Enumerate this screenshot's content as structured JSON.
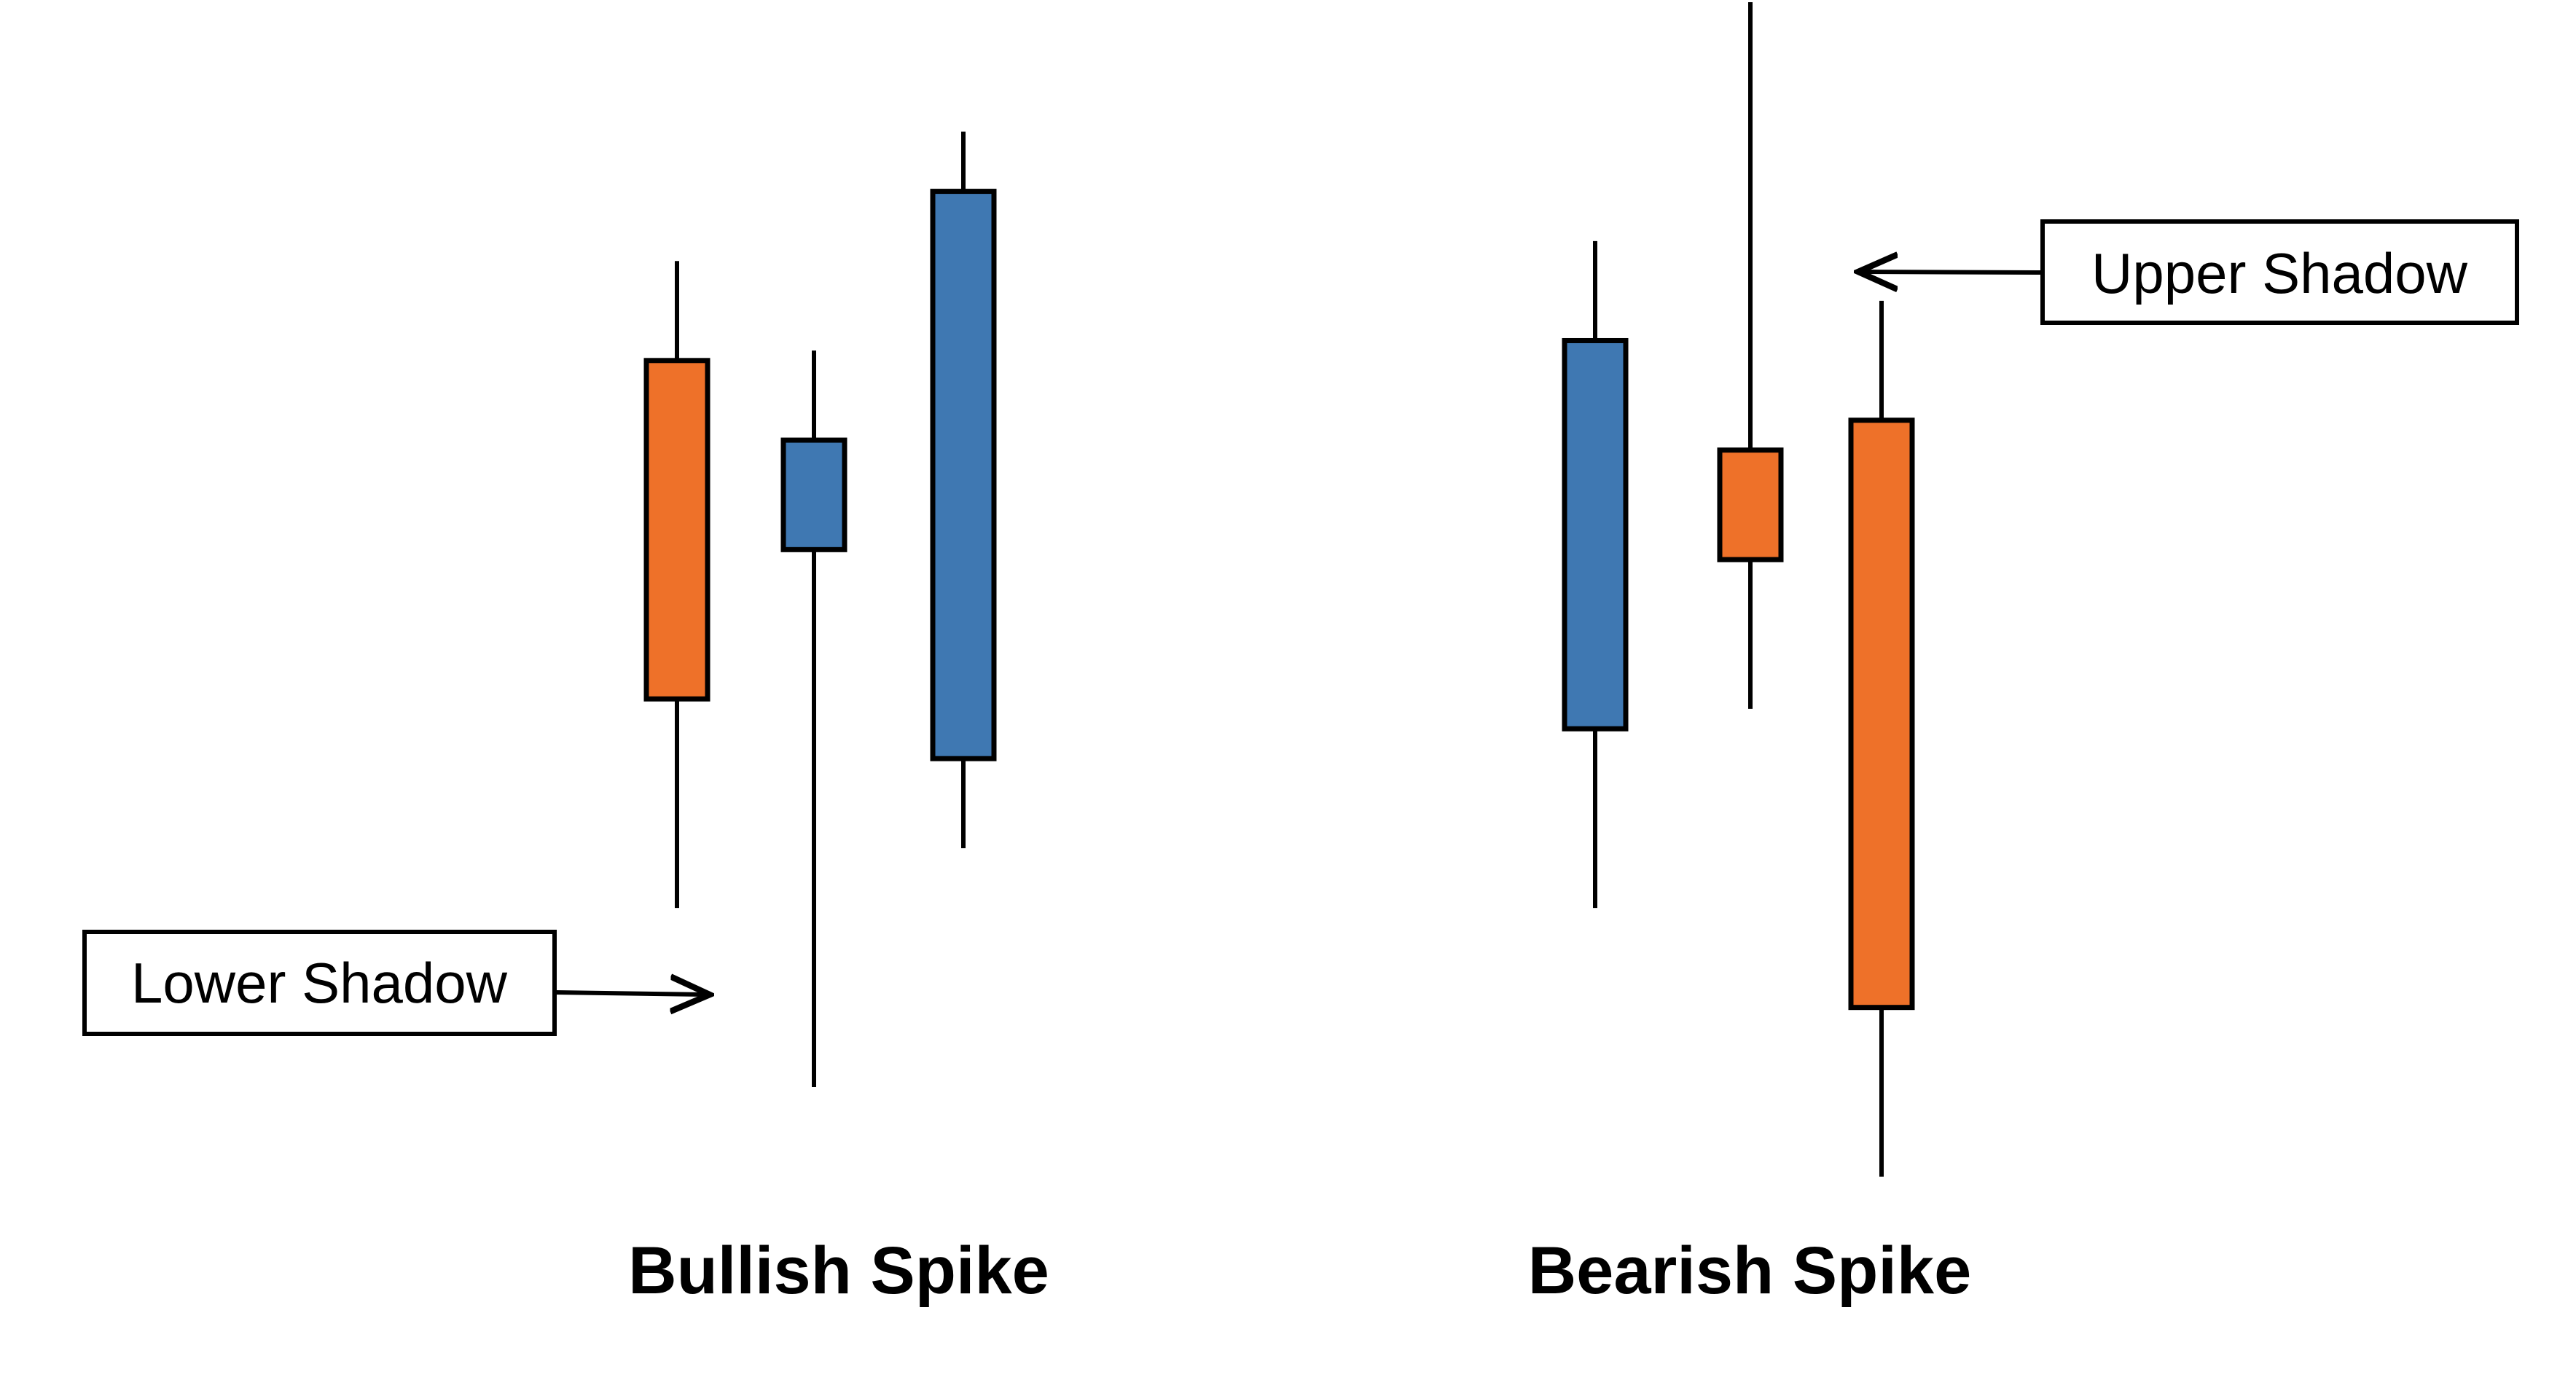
{
  "colors": {
    "bullish": "#3f78b2",
    "bearish": "#ee7129",
    "outline": "#000000",
    "background": "#ffffff"
  },
  "captions": {
    "bullish": "Bullish Spike",
    "bearish": "Bearish Spike"
  },
  "callouts": {
    "lower_shadow": "Lower Shadow",
    "upper_shadow": "Upper Shadow"
  },
  "groups": [
    {
      "name": "bullish-spike",
      "candles": [
        {
          "direction": "bearish",
          "high": 8.0,
          "open": 7.0,
          "close": 3.6,
          "low": 1.5
        },
        {
          "direction": "bullish",
          "high": 7.1,
          "open": 5.1,
          "close": 6.2,
          "low": -0.3
        },
        {
          "direction": "bullish",
          "high": 9.3,
          "open": 3.0,
          "close": 8.7,
          "low": 2.1
        }
      ]
    },
    {
      "name": "bearish-spike",
      "candles": [
        {
          "direction": "bullish",
          "high": 8.2,
          "open": 3.3,
          "close": 7.2,
          "low": 1.5
        },
        {
          "direction": "bearish",
          "high": 10.6,
          "open": 6.1,
          "close": 5.0,
          "low": 3.5
        },
        {
          "direction": "bearish",
          "high": 7.6,
          "open": 6.4,
          "close": 0.5,
          "low": -1.2
        }
      ]
    }
  ]
}
